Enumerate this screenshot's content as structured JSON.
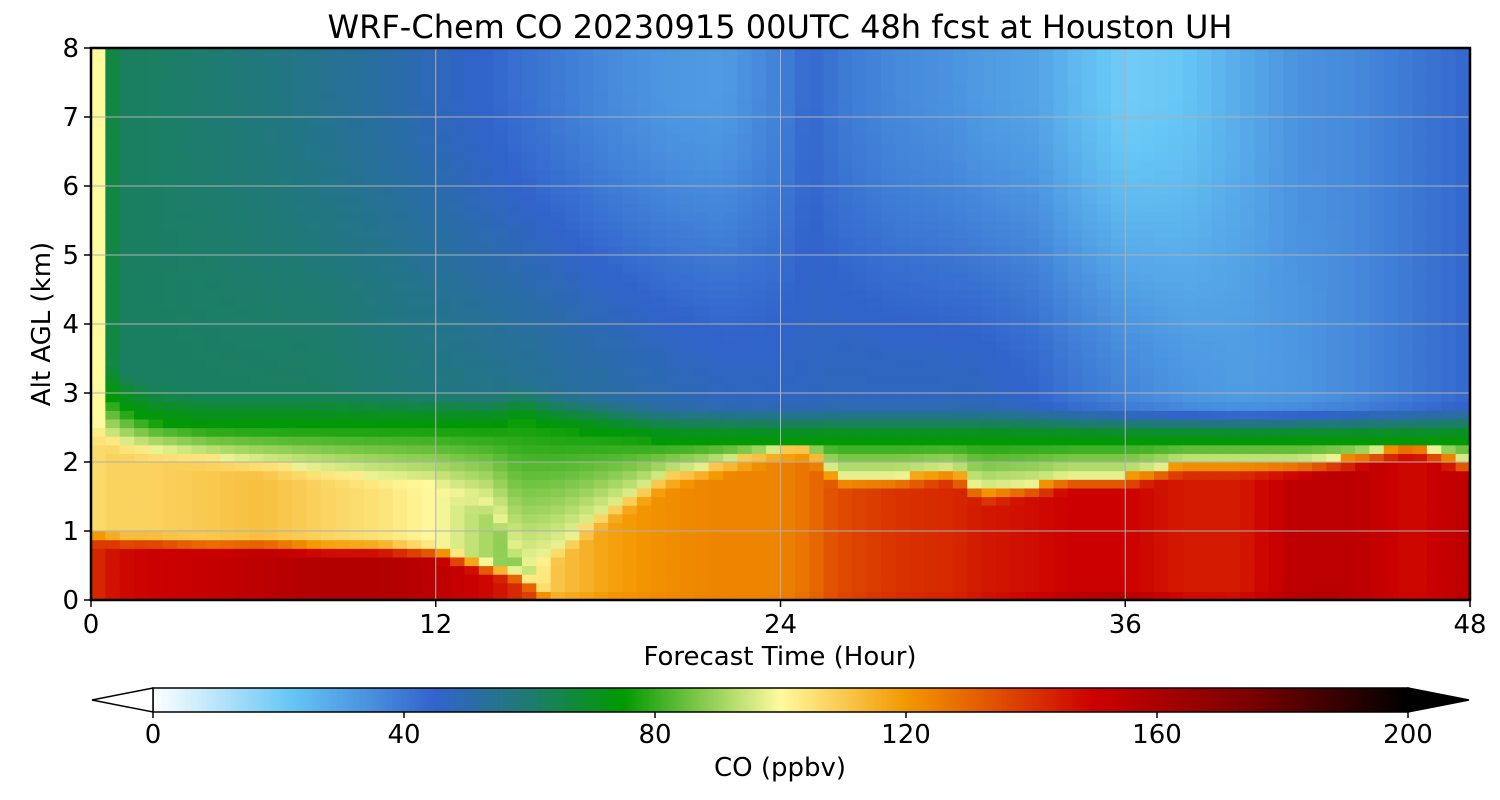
{
  "chart_data": {
    "type": "heatmap",
    "subtype": "filled-contour time-height cross section",
    "title": "WRF-Chem CO  20230915 00UTC 48h fcst at Houston UH",
    "xlabel": "Forecast Time (Hour)",
    "ylabel": "Alt AGL (km)",
    "xlim": [
      0,
      48
    ],
    "ylim": [
      0,
      8
    ],
    "x_ticks": [
      "0",
      "12",
      "24",
      "36",
      "48"
    ],
    "y_ticks": [
      "0",
      "1",
      "2",
      "3",
      "4",
      "5",
      "6",
      "7",
      "8"
    ],
    "grid": true,
    "x_hours": [
      0,
      0.5,
      1,
      2,
      4,
      6,
      8,
      10,
      12,
      14,
      15,
      16,
      18,
      20,
      22,
      24,
      25,
      26,
      28,
      30,
      31,
      33,
      34,
      36,
      38,
      40,
      42,
      44,
      46,
      48
    ],
    "pbl_top_km": [
      3.2,
      3.0,
      2.8,
      2.6,
      2.5,
      2.5,
      2.5,
      2.5,
      2.5,
      2.5,
      2.6,
      2.5,
      2.4,
      2.3,
      2.3,
      2.3,
      2.3,
      2.3,
      2.3,
      2.3,
      2.3,
      2.3,
      2.3,
      2.3,
      2.3,
      2.3,
      2.3,
      2.3,
      2.3,
      2.3
    ],
    "polluted_top_km": [
      2.5,
      2.4,
      2.3,
      2.2,
      2.1,
      2.0,
      1.9,
      1.8,
      1.7,
      1.4,
      0.5,
      0.7,
      1.3,
      1.8,
      2.0,
      2.2,
      2.2,
      1.8,
      1.8,
      1.9,
      1.6,
      1.7,
      1.8,
      1.8,
      2.0,
      2.0,
      2.0,
      2.1,
      2.3,
      2.0
    ],
    "surface_layer_top_km": [
      0.9,
      0.9,
      0.85,
      0.85,
      0.8,
      0.8,
      0.75,
      0.75,
      0.7,
      0.45,
      0.35,
      0.0,
      0,
      0,
      0,
      0,
      0,
      0,
      0,
      0,
      0,
      0,
      0,
      0,
      0,
      0,
      0,
      0,
      0,
      0
    ],
    "near_surface_co_ppbv": [
      140,
      145,
      148,
      150,
      152,
      155,
      158,
      158,
      155,
      148,
      140,
      130,
      128,
      126,
      125,
      126,
      132,
      140,
      145,
      148,
      150,
      160,
      175,
      185,
      160,
      158,
      165,
      162,
      150,
      160
    ],
    "boundary_layer_co_ppbv": [
      105,
      108,
      108,
      108,
      110,
      112,
      108,
      105,
      100,
      90,
      85,
      110,
      118,
      122,
      124,
      124,
      128,
      135,
      140,
      142,
      145,
      148,
      150,
      150,
      145,
      145,
      155,
      155,
      148,
      155
    ],
    "free_trop_co_ppbv": [
      80,
      70,
      62,
      62,
      62,
      62,
      62,
      60,
      58,
      56,
      55,
      54,
      52,
      50,
      48,
      47,
      47,
      48,
      48,
      48,
      48,
      45,
      42,
      38,
      34,
      32,
      33,
      36,
      40,
      44
    ],
    "upper_co_ppbv": [
      80,
      70,
      62,
      62,
      60,
      58,
      55,
      52,
      48,
      44,
      42,
      40,
      36,
      33,
      32,
      38,
      44,
      40,
      36,
      34,
      32,
      30,
      26,
      20,
      22,
      28,
      34,
      36,
      40,
      44
    ],
    "colorbar": {
      "label": "CO  (ppbv)",
      "min": 0,
      "max": 200,
      "ticks": [
        "0",
        "40",
        "80",
        "120",
        "160",
        "200"
      ],
      "extend": "both",
      "colormap_stops": [
        {
          "v": 0,
          "c": "#ffffff"
        },
        {
          "v": 22,
          "c": "#66c6f5"
        },
        {
          "v": 45,
          "c": "#3163cb"
        },
        {
          "v": 60,
          "c": "#1e7b70"
        },
        {
          "v": 75,
          "c": "#009a00"
        },
        {
          "v": 87,
          "c": "#7fc84a"
        },
        {
          "v": 100,
          "c": "#fffa9e"
        },
        {
          "v": 120,
          "c": "#f39800"
        },
        {
          "v": 150,
          "c": "#cc0000"
        },
        {
          "v": 175,
          "c": "#7a0000"
        },
        {
          "v": 200,
          "c": "#000000"
        }
      ]
    }
  }
}
